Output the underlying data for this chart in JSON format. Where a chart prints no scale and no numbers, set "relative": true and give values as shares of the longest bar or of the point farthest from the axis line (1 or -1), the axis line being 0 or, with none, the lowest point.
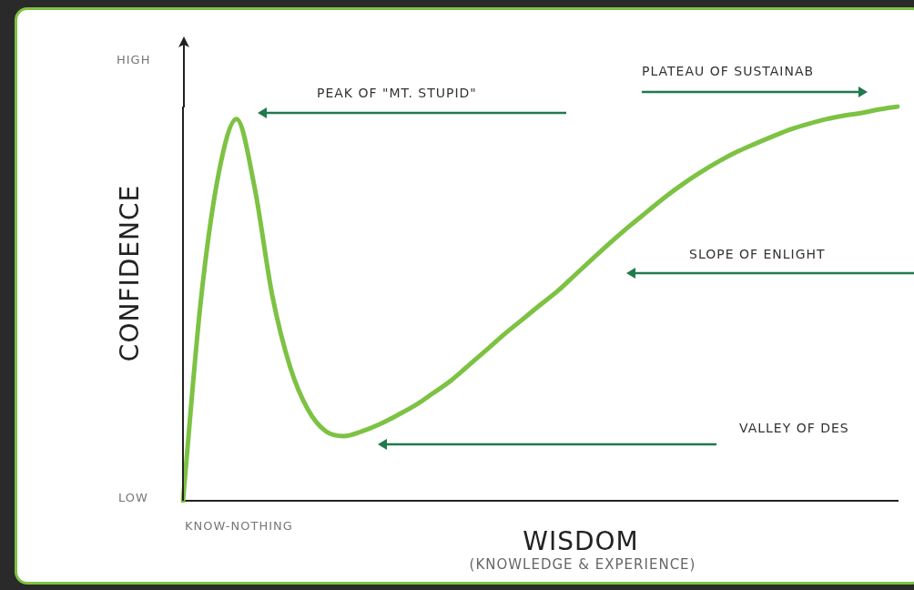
{
  "chart_data": {
    "type": "line",
    "xlabel": "WISDOM",
    "ylabel": "CONFIDENCE",
    "relative": true,
    "categories": [
      null,
      null,
      null,
      null,
      null,
      null,
      null,
      null,
      null,
      null,
      null,
      null,
      null,
      null,
      null,
      null,
      null,
      null,
      null,
      null,
      null,
      null,
      null,
      null,
      null,
      null,
      null,
      null,
      null,
      null,
      null,
      null,
      null,
      null,
      null,
      null,
      null,
      null,
      null,
      null,
      null
    ],
    "series": [
      {
        "color": "#7dc243",
        "values": [
          0,
          0.508,
          0.831,
          0.968,
          0.797,
          0.52,
          0.339,
          0.231,
          0.176,
          0.164,
          0.176,
          0.194,
          0.217,
          0.242,
          0.273,
          0.305,
          0.344,
          0.383,
          0.423,
          0.46,
          0.497,
          0.533,
          0.575,
          0.617,
          0.658,
          0.697,
          0.734,
          0.771,
          0.804,
          0.834,
          0.861,
          0.885,
          0.905,
          0.924,
          0.942,
          0.956,
          0.968,
          0.977,
          0.984,
          0.993,
          1
        ]
      }
    ],
    "annotations": [
      "PEAK OF \"MT. STUPID\"",
      "PLATEAU OF SUSTAINAB",
      "SLOPE OF ENLIGHT",
      "VALLEY OF DES",
      "(KNOWLEDGE & EXPERIENCE)",
      "HIGH",
      "LOW",
      "KNOW-NOTHING"
    ],
    "grid": false,
    "legend": false,
    "marker": "none",
    "line_style": "solid"
  }
}
